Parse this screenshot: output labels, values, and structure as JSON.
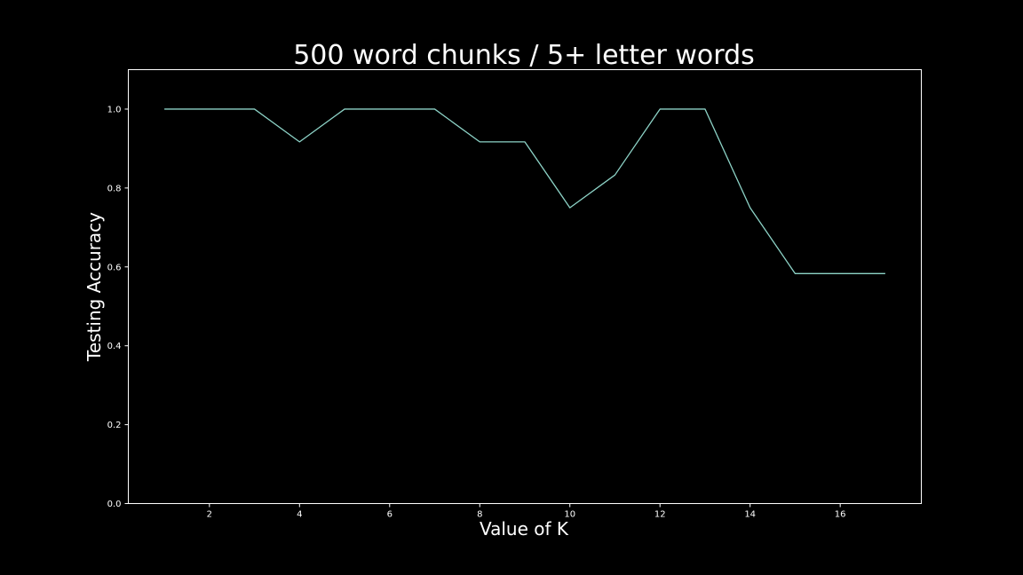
{
  "chart_data": {
    "type": "line",
    "title": "500 word chunks / 5+ letter words",
    "xlabel": "Value of K",
    "ylabel": "Testing Accuracy",
    "x": [
      1,
      2,
      3,
      4,
      5,
      6,
      7,
      8,
      9,
      10,
      11,
      12,
      13,
      14,
      15,
      16,
      17
    ],
    "series": [
      {
        "values": [
          1.0,
          1.0,
          1.0,
          0.917,
          1.0,
          1.0,
          1.0,
          0.917,
          0.917,
          0.75,
          0.833,
          1.0,
          1.0,
          0.75,
          0.583,
          0.583,
          0.583
        ]
      }
    ],
    "xlim": [
      0.2,
      17.8
    ],
    "ylim": [
      0.0,
      1.1
    ],
    "xticks": [
      2,
      4,
      6,
      8,
      10,
      12,
      14,
      16
    ],
    "yticks": [
      0.0,
      0.2,
      0.4,
      0.6,
      0.8,
      1.0
    ],
    "xtick_labels": [
      "2",
      "4",
      "6",
      "8",
      "10",
      "12",
      "14",
      "16"
    ],
    "ytick_labels": [
      "0.0",
      "0.2",
      "0.4",
      "0.6",
      "0.8",
      "1.0"
    ],
    "grid": false,
    "colors": {
      "background": "#000000",
      "line": "#8dd3c7",
      "axes": "#ffffff",
      "text": "#ffffff"
    }
  }
}
